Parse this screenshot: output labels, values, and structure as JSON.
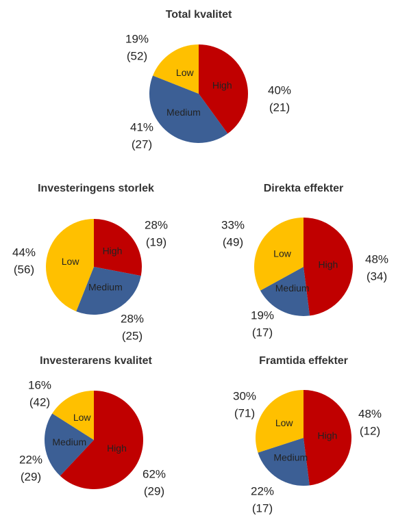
{
  "chart_data": [
    {
      "type": "pie",
      "title": "Total kvalitet",
      "categories": [
        "High",
        "Medium",
        "Low"
      ],
      "values": [
        40,
        41,
        19
      ],
      "value_labels": [
        "40%",
        "41%",
        "19%"
      ],
      "count_labels": [
        "(21)",
        "(27)",
        "(52)"
      ],
      "colors": [
        "#c00000",
        "#3c5f95",
        "#ffc000"
      ]
    },
    {
      "type": "pie",
      "title": "Investeringens storlek",
      "categories": [
        "High",
        "Medium",
        "Low"
      ],
      "values": [
        28,
        28,
        44
      ],
      "value_labels": [
        "28%",
        "28%",
        "44%"
      ],
      "count_labels": [
        "(19)",
        "(25)",
        "(56)"
      ],
      "colors": [
        "#c00000",
        "#3c5f95",
        "#ffc000"
      ]
    },
    {
      "type": "pie",
      "title": "Direkta effekter",
      "categories": [
        "High",
        "Medium",
        "Low"
      ],
      "values": [
        48,
        19,
        33
      ],
      "value_labels": [
        "48%",
        "19%",
        "33%"
      ],
      "count_labels": [
        "(34)",
        "(17)",
        "(49)"
      ],
      "colors": [
        "#c00000",
        "#3c5f95",
        "#ffc000"
      ]
    },
    {
      "type": "pie",
      "title": "Investerarens kvalitet",
      "categories": [
        "High",
        "Medium",
        "Low"
      ],
      "values": [
        62,
        22,
        16
      ],
      "value_labels": [
        "62%",
        "22%",
        "16%"
      ],
      "count_labels": [
        "(29)",
        "(29)",
        "(42)"
      ],
      "colors": [
        "#c00000",
        "#3c5f95",
        "#ffc000"
      ]
    },
    {
      "type": "pie",
      "title": "Framtida effekter",
      "categories": [
        "High",
        "Medium",
        "Low"
      ],
      "values": [
        48,
        22,
        30
      ],
      "value_labels": [
        "48%",
        "22%",
        "30%"
      ],
      "count_labels": [
        "(12)",
        "(17)",
        "(71)"
      ],
      "colors": [
        "#c00000",
        "#3c5f95",
        "#ffc000"
      ]
    }
  ]
}
